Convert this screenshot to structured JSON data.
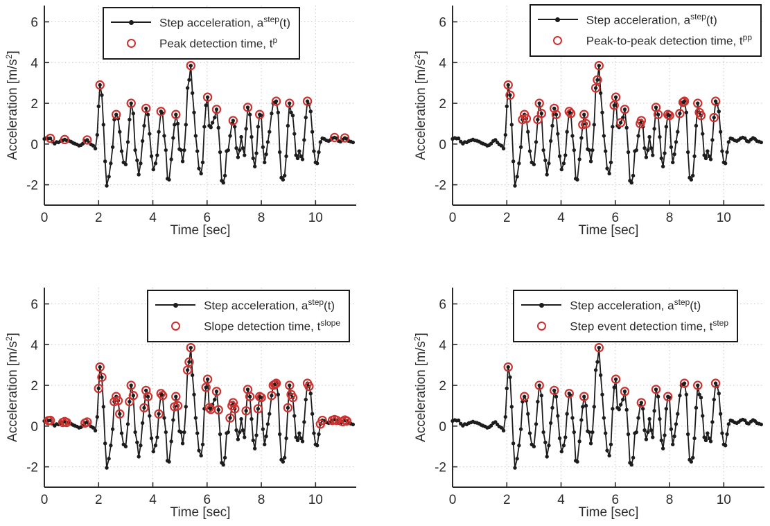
{
  "colors": {
    "background": "#ffffff",
    "signal_line": "#1c1c1c",
    "detection_red": "#cc3230",
    "grid": "#c6c6c6",
    "axis": "#2a2a2a",
    "text": "#2b2b2b"
  },
  "chart_data": {
    "type": "line",
    "title": "",
    "shared": {
      "xlabel": "Time [sec]",
      "ylabel": {
        "prefix": "Acceleration [m/s",
        "sup": "2",
        "suffix": "]"
      },
      "xlim": [
        0,
        11.5
      ],
      "ylim": [
        -3,
        6.8
      ],
      "xticks": [
        0,
        2,
        4,
        6,
        8,
        10
      ],
      "yticks": [
        -2,
        0,
        2,
        4,
        6
      ],
      "grid": true,
      "legend_position": "top-right-inside",
      "signal_legend": {
        "prefix": "Step acceleration, a",
        "sup": "step",
        "suffix": "(t)"
      },
      "signal": {
        "t": [
          0.0,
          0.08,
          0.15,
          0.22,
          0.3,
          0.38,
          0.45,
          0.52,
          0.6,
          0.68,
          0.75,
          0.82,
          0.9,
          0.98,
          1.05,
          1.12,
          1.2,
          1.28,
          1.35,
          1.42,
          1.5,
          1.58,
          1.65,
          1.72,
          1.8,
          1.88,
          1.95,
          2.0,
          2.05,
          2.12,
          2.18,
          2.24,
          2.3,
          2.38,
          2.45,
          2.52,
          2.58,
          2.65,
          2.72,
          2.78,
          2.85,
          2.92,
          3.0,
          3.08,
          3.14,
          3.2,
          3.28,
          3.35,
          3.42,
          3.48,
          3.55,
          3.62,
          3.68,
          3.75,
          3.82,
          3.88,
          3.95,
          4.02,
          4.1,
          4.16,
          4.22,
          4.3,
          4.36,
          4.42,
          4.48,
          4.54,
          4.6,
          4.68,
          4.75,
          4.8,
          4.85,
          4.92,
          4.98,
          5.04,
          5.1,
          5.16,
          5.22,
          5.28,
          5.34,
          5.4,
          5.46,
          5.52,
          5.58,
          5.64,
          5.7,
          5.78,
          5.84,
          5.9,
          5.96,
          6.02,
          6.08,
          6.14,
          6.2,
          6.28,
          6.35,
          6.42,
          6.48,
          6.54,
          6.6,
          6.66,
          6.72,
          6.78,
          6.85,
          6.92,
          6.96,
          7.02,
          7.08,
          7.14,
          7.2,
          7.26,
          7.32,
          7.38,
          7.44,
          7.5,
          7.58,
          7.64,
          7.7,
          7.76,
          7.82,
          7.88,
          7.94,
          8.0,
          8.06,
          8.12,
          8.18,
          8.24,
          8.3,
          8.38,
          8.44,
          8.5,
          8.55,
          8.62,
          8.68,
          8.74,
          8.8,
          8.86,
          8.92,
          8.98,
          9.04,
          9.1,
          9.16,
          9.22,
          9.28,
          9.34,
          9.4,
          9.46,
          9.52,
          9.58,
          9.64,
          9.7,
          9.76,
          9.82,
          9.88,
          9.94,
          10.0,
          10.06,
          10.12,
          10.18,
          10.25,
          10.32,
          10.4,
          10.48,
          10.55,
          10.62,
          10.7,
          10.78,
          10.85,
          10.92,
          11.0,
          11.08,
          11.15,
          11.22,
          11.3,
          11.38
        ],
        "a": [
          0.25,
          0.3,
          0.27,
          0.28,
          0.12,
          0.02,
          0.1,
          0.08,
          0.15,
          0.18,
          0.22,
          0.18,
          0.16,
          0.12,
          0.06,
          0.02,
          -0.02,
          -0.08,
          -0.05,
          0.02,
          0.15,
          0.2,
          0.08,
          -0.02,
          -0.08,
          -0.22,
          0.45,
          1.85,
          2.9,
          2.4,
          0.95,
          -0.85,
          -2.05,
          -1.6,
          -0.95,
          -0.15,
          1.2,
          1.45,
          1.25,
          0.6,
          -0.35,
          -0.9,
          -1.0,
          0.1,
          1.2,
          2.0,
          1.5,
          -0.3,
          -0.8,
          -1.5,
          -0.95,
          0.15,
          0.9,
          1.75,
          1.45,
          0.5,
          -0.6,
          -1.25,
          -0.95,
          -0.55,
          0.6,
          1.6,
          1.5,
          0.4,
          -0.3,
          -1.7,
          -1.75,
          -0.75,
          0.3,
          0.95,
          1.45,
          1.0,
          -0.25,
          -0.3,
          -0.85,
          -0.3,
          0.95,
          2.75,
          3.15,
          3.85,
          2.5,
          1.55,
          0.4,
          -0.35,
          -1.2,
          -1.45,
          -0.9,
          0.85,
          1.9,
          2.3,
          0.9,
          0.82,
          1.05,
          1.3,
          1.7,
          0.8,
          -0.4,
          -1.8,
          -1.9,
          -1.55,
          -0.35,
          -0.3,
          0.4,
          1.0,
          1.15,
          0.85,
          -0.2,
          -0.65,
          -0.3,
          0.35,
          -0.2,
          -0.55,
          0.75,
          1.8,
          1.45,
          0.35,
          -0.7,
          -1.1,
          -0.45,
          0.85,
          1.45,
          1.4,
          -0.15,
          -0.9,
          -0.5,
          0.1,
          0.6,
          1.5,
          2.0,
          2.05,
          2.1,
          1.55,
          -0.4,
          -1.65,
          -1.75,
          -1.55,
          -0.6,
          0.9,
          2.0,
          1.55,
          1.4,
          0.5,
          -0.55,
          -0.7,
          -0.35,
          -0.6,
          -0.75,
          0.2,
          1.3,
          2.1,
          1.95,
          1.6,
          0.6,
          -0.35,
          -0.9,
          -0.95,
          -0.4,
          0.1,
          0.28,
          0.25,
          0.18,
          0.15,
          0.2,
          0.28,
          0.32,
          0.28,
          0.15,
          0.12,
          0.22,
          0.3,
          0.25,
          0.15,
          0.12,
          0.08
        ]
      }
    },
    "panels": [
      {
        "name": "peak-detection",
        "legend": {
          "prefix": "Peak detection time, t",
          "sup": "p",
          "suffix": ""
        },
        "detection_times": [
          0.22,
          0.75,
          1.58,
          2.05,
          2.65,
          3.2,
          3.75,
          4.3,
          4.85,
          5.4,
          6.02,
          6.35,
          6.96,
          7.5,
          7.94,
          8.55,
          9.04,
          9.7,
          10.7,
          11.08
        ]
      },
      {
        "name": "peak-to-peak-detection",
        "legend": {
          "prefix": "Peak-to-peak detection time, t",
          "sup": "pp",
          "suffix": ""
        },
        "detection_times": [
          2.05,
          2.12,
          2.58,
          2.65,
          2.72,
          3.14,
          3.2,
          3.28,
          3.75,
          3.82,
          4.3,
          4.36,
          4.8,
          4.85,
          4.92,
          5.28,
          5.34,
          5.4,
          5.96,
          6.02,
          6.2,
          6.35,
          6.92,
          6.96,
          7.5,
          7.58,
          7.94,
          8.0,
          8.38,
          8.5,
          8.55,
          9.04,
          9.1,
          9.16,
          9.64,
          9.7
        ]
      },
      {
        "name": "slope-detection",
        "legend": {
          "prefix": "Slope detection time, t",
          "sup": "slope",
          "suffix": ""
        },
        "detection_times": [
          0.15,
          0.22,
          0.68,
          0.75,
          0.82,
          1.5,
          1.58,
          2.0,
          2.05,
          2.12,
          2.58,
          2.65,
          2.72,
          2.78,
          3.14,
          3.2,
          3.28,
          3.68,
          3.75,
          3.82,
          4.22,
          4.3,
          4.36,
          4.8,
          4.85,
          4.92,
          5.28,
          5.34,
          5.4,
          5.96,
          6.02,
          6.08,
          6.14,
          6.35,
          6.42,
          6.85,
          6.92,
          6.96,
          7.02,
          7.44,
          7.5,
          7.58,
          7.88,
          7.94,
          8.0,
          8.38,
          8.44,
          8.5,
          8.55,
          8.98,
          9.04,
          9.1,
          9.16,
          9.7,
          9.76,
          10.18,
          10.25,
          10.62,
          10.7,
          10.78,
          11.0,
          11.08,
          11.15
        ]
      },
      {
        "name": "step-event-detection",
        "legend": {
          "prefix": "Step event detection time, t",
          "sup": "step",
          "suffix": ""
        },
        "detection_times": [
          2.05,
          2.65,
          3.2,
          3.75,
          4.3,
          4.85,
          5.4,
          6.02,
          6.35,
          6.96,
          7.5,
          7.94,
          8.55,
          9.04,
          9.7
        ]
      }
    ]
  }
}
